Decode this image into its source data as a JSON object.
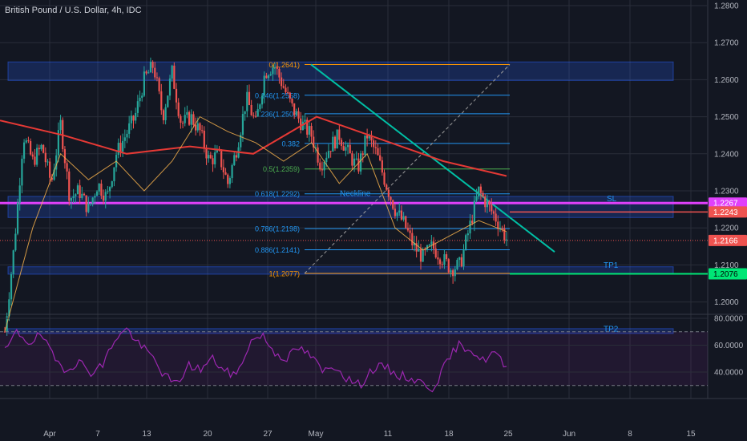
{
  "header": {
    "title": "British Pound / U.S. Dollar, 4h, IDC"
  },
  "colors": {
    "background": "#131722",
    "grid": "#2a2e39",
    "axis_text": "#b2b5be",
    "up": "#26a69a",
    "down": "#ef5350",
    "zone": "#2962ff",
    "fib": "#2196f3",
    "trendline": "#00bfa5",
    "sl_line": "#e040fb",
    "tp_line": "#00e676",
    "rsi": "#9c27b0",
    "ema200": "#e53935",
    "ema_fast": "#ffb74d"
  },
  "chart_data": [
    {
      "type": "candlestick",
      "title": "British Pound / U.S. Dollar, 4h, IDC",
      "x_ticks": [
        "Apr",
        "7",
        "13",
        "20",
        "27",
        "May",
        "11",
        "18",
        "25",
        "Jun",
        "8",
        "15"
      ],
      "y_ticks": [
        "1.2800",
        "1.2700",
        "1.2600",
        "1.2500",
        "1.2400",
        "1.2300",
        "1.2200",
        "1.2100",
        "1.2000"
      ],
      "ylim": [
        1.1915,
        1.2805
      ],
      "grid": true,
      "price_path": [
        1.192,
        1.215,
        1.245,
        1.238,
        1.242,
        1.232,
        1.248,
        1.228,
        1.23,
        1.225,
        1.232,
        1.228,
        1.24,
        1.245,
        1.25,
        1.26,
        1.264,
        1.25,
        1.262,
        1.248,
        1.25,
        1.246,
        1.238,
        1.24,
        1.232,
        1.242,
        1.255,
        1.248,
        1.262,
        1.264,
        1.258,
        1.252,
        1.248,
        1.245,
        1.237,
        1.242,
        1.245,
        1.24,
        1.236,
        1.245,
        1.24,
        1.232,
        1.225,
        1.221,
        1.215,
        1.212,
        1.215,
        1.212,
        1.209,
        1.21,
        1.22,
        1.23,
        1.226,
        1.222,
        1.217
      ],
      "ema_200_path": [
        1.249,
        1.245,
        1.24,
        1.242,
        1.24,
        1.25,
        1.244,
        1.238,
        1.234
      ],
      "ema_fast_path": [
        1.192,
        1.22,
        1.24,
        1.233,
        1.238,
        1.23,
        1.238,
        1.25,
        1.246,
        1.243,
        1.238,
        1.243,
        1.232,
        1.24,
        1.22,
        1.214,
        1.218,
        1.222,
        1.219
      ],
      "fibonacci": [
        {
          "label": "0(1.2641)",
          "price": 1.2641
        },
        {
          "label": "0.146(1.2558)",
          "price": 1.2558
        },
        {
          "label": "0.236(1.2508)",
          "price": 1.2508
        },
        {
          "label": "0.382",
          "price": 1.2428
        },
        {
          "label": "0.5(1.2359)",
          "price": 1.2359
        },
        {
          "label": "0.618(1.2292)",
          "price": 1.2292
        },
        {
          "label": "0.786(1.2198)",
          "price": 1.2198
        },
        {
          "label": "0.886(1.2141)",
          "price": 1.2141
        },
        {
          "label": "1(1.2077)",
          "price": 1.2077
        }
      ],
      "zones": [
        {
          "from": 1.2598,
          "to": 1.2648
        },
        {
          "from": 1.2228,
          "to": 1.2285
        },
        {
          "from": 1.2075,
          "to": 1.2095
        },
        {
          "from": 1.1915,
          "to": 1.1928
        }
      ],
      "annotations": {
        "neckline": "Neckline",
        "sl": "SL",
        "tp1": "TP1",
        "tp2": "TP2"
      },
      "price_labels": [
        {
          "text": "1.2267",
          "price": 1.2267,
          "color": "#e040fb"
        },
        {
          "text": "1.2243",
          "price": 1.2243,
          "color": "#ef5350"
        },
        {
          "text": "1.2166",
          "price": 1.2166,
          "color": "#ef5350"
        },
        {
          "text": "1.2076",
          "price": 1.2076,
          "color": "#00e676"
        }
      ]
    },
    {
      "type": "line",
      "title": "",
      "y_ticks": [
        "80.0000",
        "60.0000",
        "40.0000"
      ],
      "ylim": [
        17,
        83
      ],
      "bands": [
        30,
        70
      ],
      "rsi_path": [
        55,
        70,
        62,
        68,
        50,
        42,
        48,
        40,
        45,
        65,
        72,
        60,
        52,
        38,
        30,
        45,
        42,
        50,
        40,
        38,
        62,
        68,
        55,
        50,
        58,
        52,
        40,
        45,
        35,
        30,
        42,
        44,
        38,
        36,
        32,
        28,
        45,
        60,
        58,
        48,
        55,
        42
      ]
    }
  ]
}
